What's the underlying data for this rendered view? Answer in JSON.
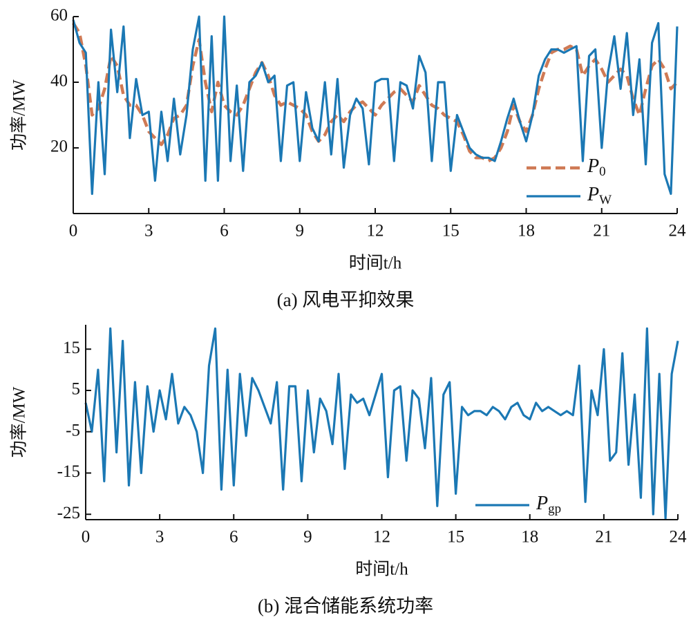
{
  "chart_data": [
    {
      "type": "line",
      "ylabel": "功率/MW",
      "xlabel": "时间t/h",
      "caption": "(a) 风电平抑效果",
      "xlim": [
        0,
        24
      ],
      "ylim": [
        0,
        60
      ],
      "xticks": [
        0,
        3,
        6,
        9,
        12,
        15,
        18,
        21,
        24
      ],
      "yticks": [
        20,
        40,
        60
      ],
      "legend": "lower right",
      "x": [
        0,
        0.25,
        0.5,
        0.75,
        1,
        1.25,
        1.5,
        1.75,
        2,
        2.25,
        2.5,
        2.75,
        3,
        3.25,
        3.5,
        3.75,
        4,
        4.25,
        4.5,
        4.75,
        5,
        5.25,
        5.5,
        5.75,
        6,
        6.25,
        6.5,
        6.75,
        7,
        7.25,
        7.5,
        7.75,
        8,
        8.25,
        8.5,
        8.75,
        9,
        9.25,
        9.5,
        9.75,
        10,
        10.25,
        10.5,
        10.75,
        11,
        11.25,
        11.5,
        11.75,
        12,
        12.25,
        12.5,
        12.75,
        13,
        13.25,
        13.5,
        13.75,
        14,
        14.25,
        14.5,
        14.75,
        15,
        15.25,
        15.5,
        15.75,
        16,
        16.25,
        16.5,
        16.75,
        17,
        17.25,
        17.5,
        17.75,
        18,
        18.25,
        18.5,
        18.75,
        19,
        19.25,
        19.5,
        19.75,
        20,
        20.25,
        20.5,
        20.75,
        21,
        21.25,
        21.5,
        21.75,
        22,
        22.25,
        22.5,
        22.75,
        23,
        23.25,
        23.5,
        23.75,
        24
      ],
      "series": [
        {
          "name": "P0",
          "color": "#cf7a55",
          "dashed": true,
          "values": [
            58,
            55,
            45,
            30,
            32,
            38,
            48,
            45,
            36,
            33,
            33,
            30,
            25,
            23,
            21,
            24,
            29,
            30,
            33,
            45,
            53,
            40,
            31,
            40,
            33,
            31,
            30,
            33,
            38,
            43,
            46,
            42,
            36,
            33,
            34,
            33,
            32,
            30,
            25,
            22,
            24,
            28,
            30,
            28,
            31,
            33,
            34,
            32,
            30,
            33,
            35,
            37,
            38,
            36,
            34,
            39,
            36,
            33,
            32,
            30,
            29,
            28,
            24,
            19,
            17,
            17,
            16,
            17,
            20,
            25,
            33,
            28,
            25,
            30,
            38,
            44,
            49,
            50,
            50,
            51,
            50,
            42,
            45,
            47,
            44,
            40,
            42,
            44,
            42,
            35,
            30,
            38,
            45,
            47,
            44,
            38,
            40
          ]
        },
        {
          "name": "PW",
          "color": "#1b78b4",
          "dashed": false,
          "values": [
            59,
            52,
            49,
            6,
            40,
            12,
            56,
            37,
            57,
            23,
            41,
            30,
            31,
            10,
            31,
            16,
            35,
            18,
            30,
            50,
            60,
            10,
            54,
            10,
            60,
            16,
            39,
            13,
            40,
            42,
            46,
            40,
            42,
            16,
            39,
            40,
            16,
            37,
            26,
            22,
            40,
            18,
            41,
            14,
            30,
            35,
            32,
            15,
            40,
            41,
            41,
            16,
            40,
            39,
            32,
            48,
            43,
            16,
            40,
            40,
            13,
            30,
            25,
            20,
            18,
            17,
            17,
            16,
            22,
            29,
            35,
            28,
            22,
            30,
            42,
            47,
            50,
            50,
            49,
            50,
            51,
            16,
            48,
            50,
            20,
            43,
            54,
            38,
            55,
            30,
            47,
            15,
            52,
            58,
            12,
            6,
            57
          ]
        }
      ]
    },
    {
      "type": "line",
      "ylabel": "功率/MW",
      "xlabel": "时间t/h",
      "caption": "(b) 混合储能系统功率",
      "xlim": [
        0,
        24
      ],
      "ylim": [
        -26.3,
        20.9
      ],
      "xticks": [
        0,
        3,
        6,
        9,
        12,
        15,
        18,
        21,
        24
      ],
      "yticks": [
        15,
        5,
        -5,
        -15,
        -25
      ],
      "legend": "lower center",
      "x": [
        0,
        0.25,
        0.5,
        0.75,
        1,
        1.25,
        1.5,
        1.75,
        2,
        2.25,
        2.5,
        2.75,
        3,
        3.25,
        3.5,
        3.75,
        4,
        4.25,
        4.5,
        4.75,
        5,
        5.25,
        5.5,
        5.75,
        6,
        6.25,
        6.5,
        6.75,
        7,
        7.25,
        7.5,
        7.75,
        8,
        8.25,
        8.5,
        8.75,
        9,
        9.25,
        9.5,
        9.75,
        10,
        10.25,
        10.5,
        10.75,
        11,
        11.25,
        11.5,
        11.75,
        12,
        12.25,
        12.5,
        12.75,
        13,
        13.25,
        13.5,
        13.75,
        14,
        14.25,
        14.5,
        14.75,
        15,
        15.25,
        15.5,
        15.75,
        16,
        16.25,
        16.5,
        16.75,
        17,
        17.25,
        17.5,
        17.75,
        18,
        18.25,
        18.5,
        18.75,
        19,
        19.25,
        19.5,
        19.75,
        20,
        20.25,
        20.5,
        20.75,
        21,
        21.25,
        21.5,
        21.75,
        22,
        22.25,
        22.5,
        22.75,
        23,
        23.25,
        23.5,
        23.75,
        24
      ],
      "series": [
        {
          "name": "Pgp",
          "color": "#1b78b4",
          "dashed": false,
          "values": [
            2,
            -5,
            10,
            -17,
            20,
            -10,
            17,
            -18,
            7,
            -15,
            6,
            -5,
            5,
            -2,
            9,
            -3,
            1,
            -1,
            -5,
            -15,
            11,
            20,
            -19,
            10,
            -18,
            9,
            -6,
            8,
            5,
            1,
            -3,
            7,
            -19,
            6,
            6,
            -17,
            5,
            -10,
            3,
            0,
            -8,
            9,
            -14,
            4,
            2,
            3,
            -1,
            4,
            9,
            -16,
            5,
            6,
            -12,
            5,
            3,
            -9,
            8,
            -23,
            4,
            7,
            -20,
            1,
            -1,
            0,
            0,
            -1,
            1,
            0,
            -2,
            1,
            2,
            -1,
            -2,
            2,
            0,
            1,
            0,
            -1,
            0,
            -1,
            11,
            -22,
            5,
            -1,
            15,
            -12,
            -10,
            14,
            -13,
            4,
            -21,
            20,
            -25,
            9,
            -26,
            9,
            17
          ]
        }
      ]
    }
  ]
}
